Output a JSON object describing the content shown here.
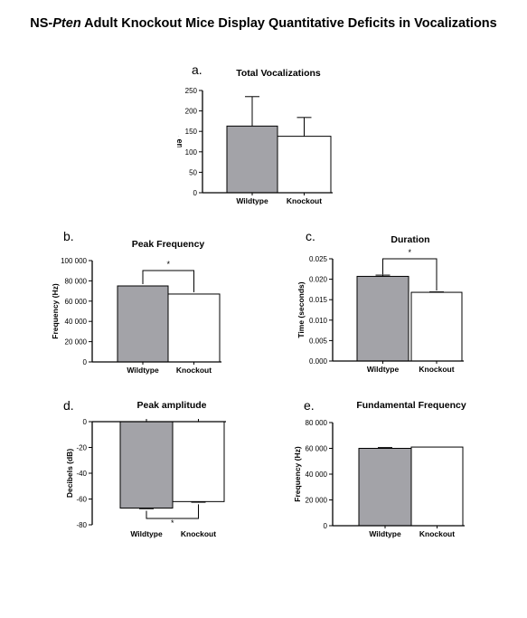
{
  "title": {
    "prefix": "NS-",
    "italic": "Pten",
    "suffix": " Adult Knockout Mice Display Quantitative Deficits  in Vocalizations"
  },
  "colors": {
    "wildtype_bar": "#a3a3a8",
    "knockout_bar": "#ffffff",
    "axis": "#000000"
  },
  "chart_data": [
    {
      "type": "bar",
      "panel_label": "a.",
      "title": "Total Vocalizations",
      "ylabel": "USVs emitted",
      "categories": [
        "Wildtype",
        "Knockout"
      ],
      "values": [
        163,
        138
      ],
      "errors": [
        72,
        46
      ],
      "ylim": [
        0,
        250
      ],
      "yticks": [
        0,
        50,
        100,
        150,
        200,
        250
      ],
      "ytick_labels": [
        "0",
        "50",
        "100",
        "150",
        "200",
        "250"
      ],
      "significance": null
    },
    {
      "type": "bar",
      "panel_label": "b.",
      "title": "Peak Frequency",
      "ylabel": "Frequency (Hz)",
      "categories": [
        "Wildtype",
        "Knockout"
      ],
      "values": [
        75000,
        67000
      ],
      "errors": [
        0,
        0
      ],
      "ylim": [
        0,
        100000
      ],
      "yticks": [
        0,
        20000,
        40000,
        60000,
        80000,
        100000
      ],
      "ytick_labels": [
        "0",
        "20 000",
        "40 000",
        "60 000",
        "80 000",
        "100 000"
      ],
      "significance": "*"
    },
    {
      "type": "bar",
      "panel_label": "c.",
      "title": "Duration",
      "ylabel": "Time (seconds)",
      "categories": [
        "Wildtype",
        "Knockout"
      ],
      "values": [
        0.0207,
        0.0168
      ],
      "errors": [
        0.0003,
        0.0001
      ],
      "ylim": [
        0,
        0.025
      ],
      "yticks": [
        0,
        0.005,
        0.01,
        0.015,
        0.02,
        0.025
      ],
      "ytick_labels": [
        "0.000",
        "0.005",
        "0.010",
        "0.015",
        "0.020",
        "0.025"
      ],
      "significance": "*"
    },
    {
      "type": "bar",
      "panel_label": "d.",
      "title": "Peak amplitude",
      "ylabel": "Decibels (dB)",
      "categories": [
        "Wildtype",
        "Knockout"
      ],
      "values": [
        -67,
        -62
      ],
      "errors": [
        0.5,
        0.5
      ],
      "ylim": [
        -80,
        0
      ],
      "yticks": [
        -80,
        -60,
        -40,
        -20,
        0
      ],
      "ytick_labels": [
        "-80",
        "-60",
        "-40",
        "-20",
        "0"
      ],
      "significance": "*"
    },
    {
      "type": "bar",
      "panel_label": "e.",
      "title": "Fundamental Frequency",
      "ylabel": "Frequency (Hz)",
      "categories": [
        "Wildtype",
        "Knockout"
      ],
      "values": [
        60000,
        61000
      ],
      "errors": [
        600,
        0
      ],
      "ylim": [
        0,
        80000
      ],
      "yticks": [
        0,
        20000,
        40000,
        60000,
        80000
      ],
      "ytick_labels": [
        "0",
        "20 000",
        "40 000",
        "60 000",
        "80 000"
      ],
      "significance": null
    }
  ]
}
